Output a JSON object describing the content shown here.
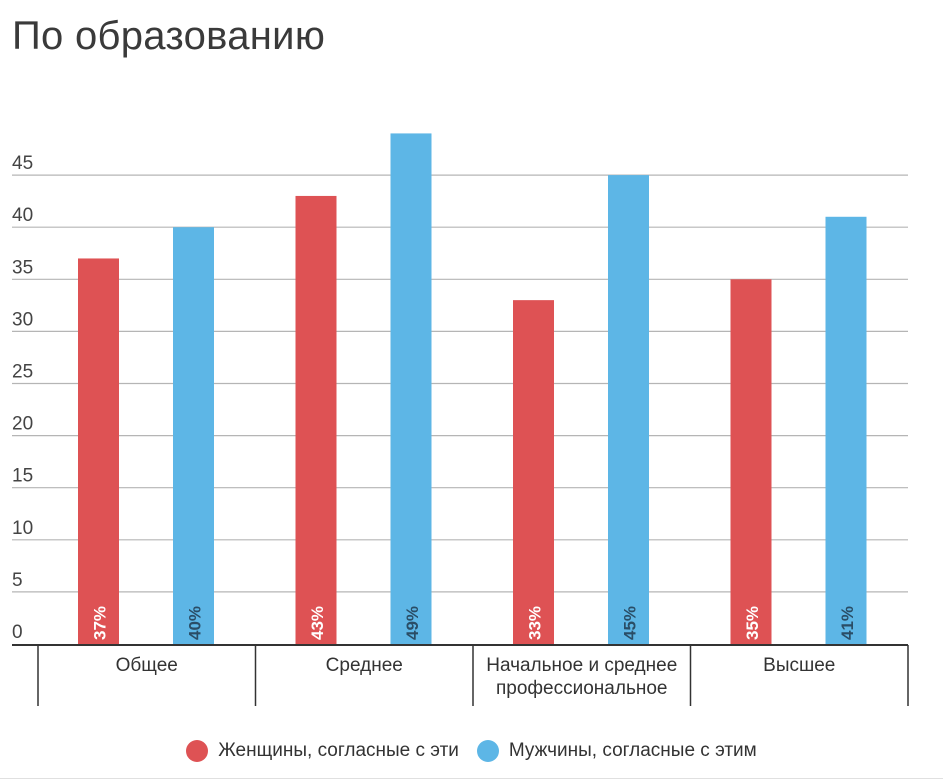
{
  "chart_data": {
    "type": "bar",
    "title": "По образованию",
    "categories": [
      "Общее",
      "Среднее",
      "Начальное и среднее профессиональное",
      "Высшее"
    ],
    "category_lines": [
      [
        "Общее"
      ],
      [
        "Среднее"
      ],
      [
        "Начальное и среднее",
        "профессиональное"
      ],
      [
        "Высшее"
      ]
    ],
    "series": [
      {
        "name": "Женщины, согласные с эти",
        "color": "#de5254",
        "values": [
          37,
          43,
          33,
          35
        ],
        "labels": [
          "37%",
          "43%",
          "33%",
          "35%"
        ]
      },
      {
        "name": "Мужчины, согласные с этим",
        "color": "#5db6e6",
        "values": [
          40,
          49,
          45,
          41
        ],
        "labels": [
          "40%",
          "49%",
          "45%",
          "41%"
        ]
      }
    ],
    "y_ticks": [
      "0",
      "5",
      "10",
      "15",
      "20",
      "25",
      "30",
      "35",
      "40",
      "45"
    ],
    "ylim": [
      0,
      50
    ],
    "grid": true,
    "legend_position": "bottom"
  }
}
